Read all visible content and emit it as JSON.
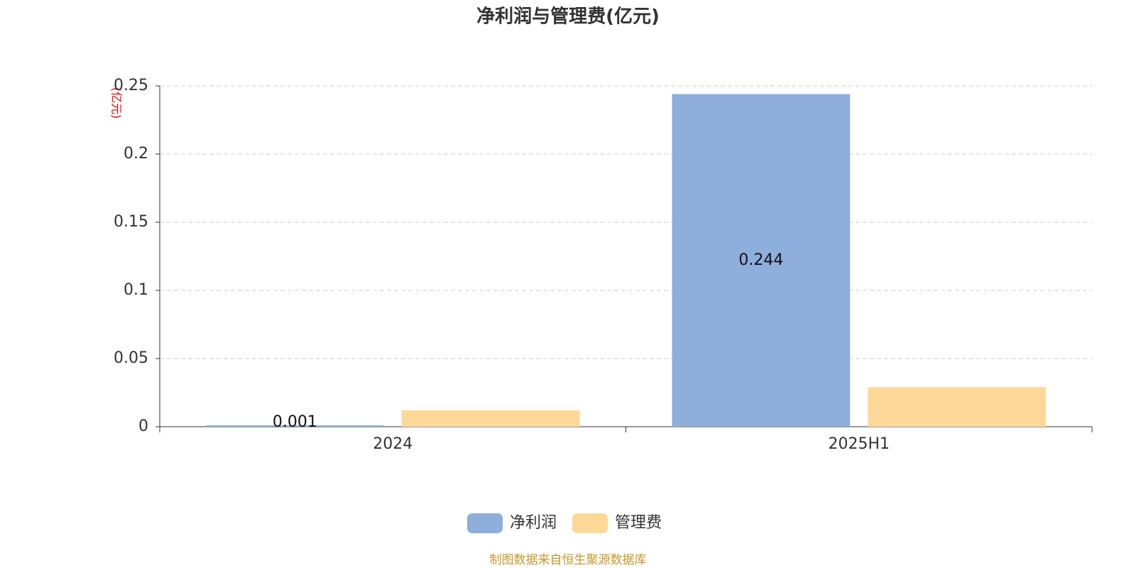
{
  "chart_data": {
    "type": "bar",
    "title": "净利润与管理费(亿元)",
    "y_label": "(亿元)",
    "source": "制图数据来自恒生聚源数据库",
    "categories": [
      "2024",
      "2025H1"
    ],
    "series": [
      {
        "name": "净利润",
        "color": "#8eaedb",
        "values": [
          0.001,
          0.244
        ],
        "show_labels": true
      },
      {
        "name": "管理费",
        "color": "#fed898",
        "values": [
          0.012,
          0.029
        ],
        "show_labels": false
      }
    ],
    "ylim": [
      0,
      0.25
    ],
    "yticks": [
      0,
      0.05,
      0.1,
      0.15,
      0.2,
      0.25
    ],
    "grid": true
  }
}
